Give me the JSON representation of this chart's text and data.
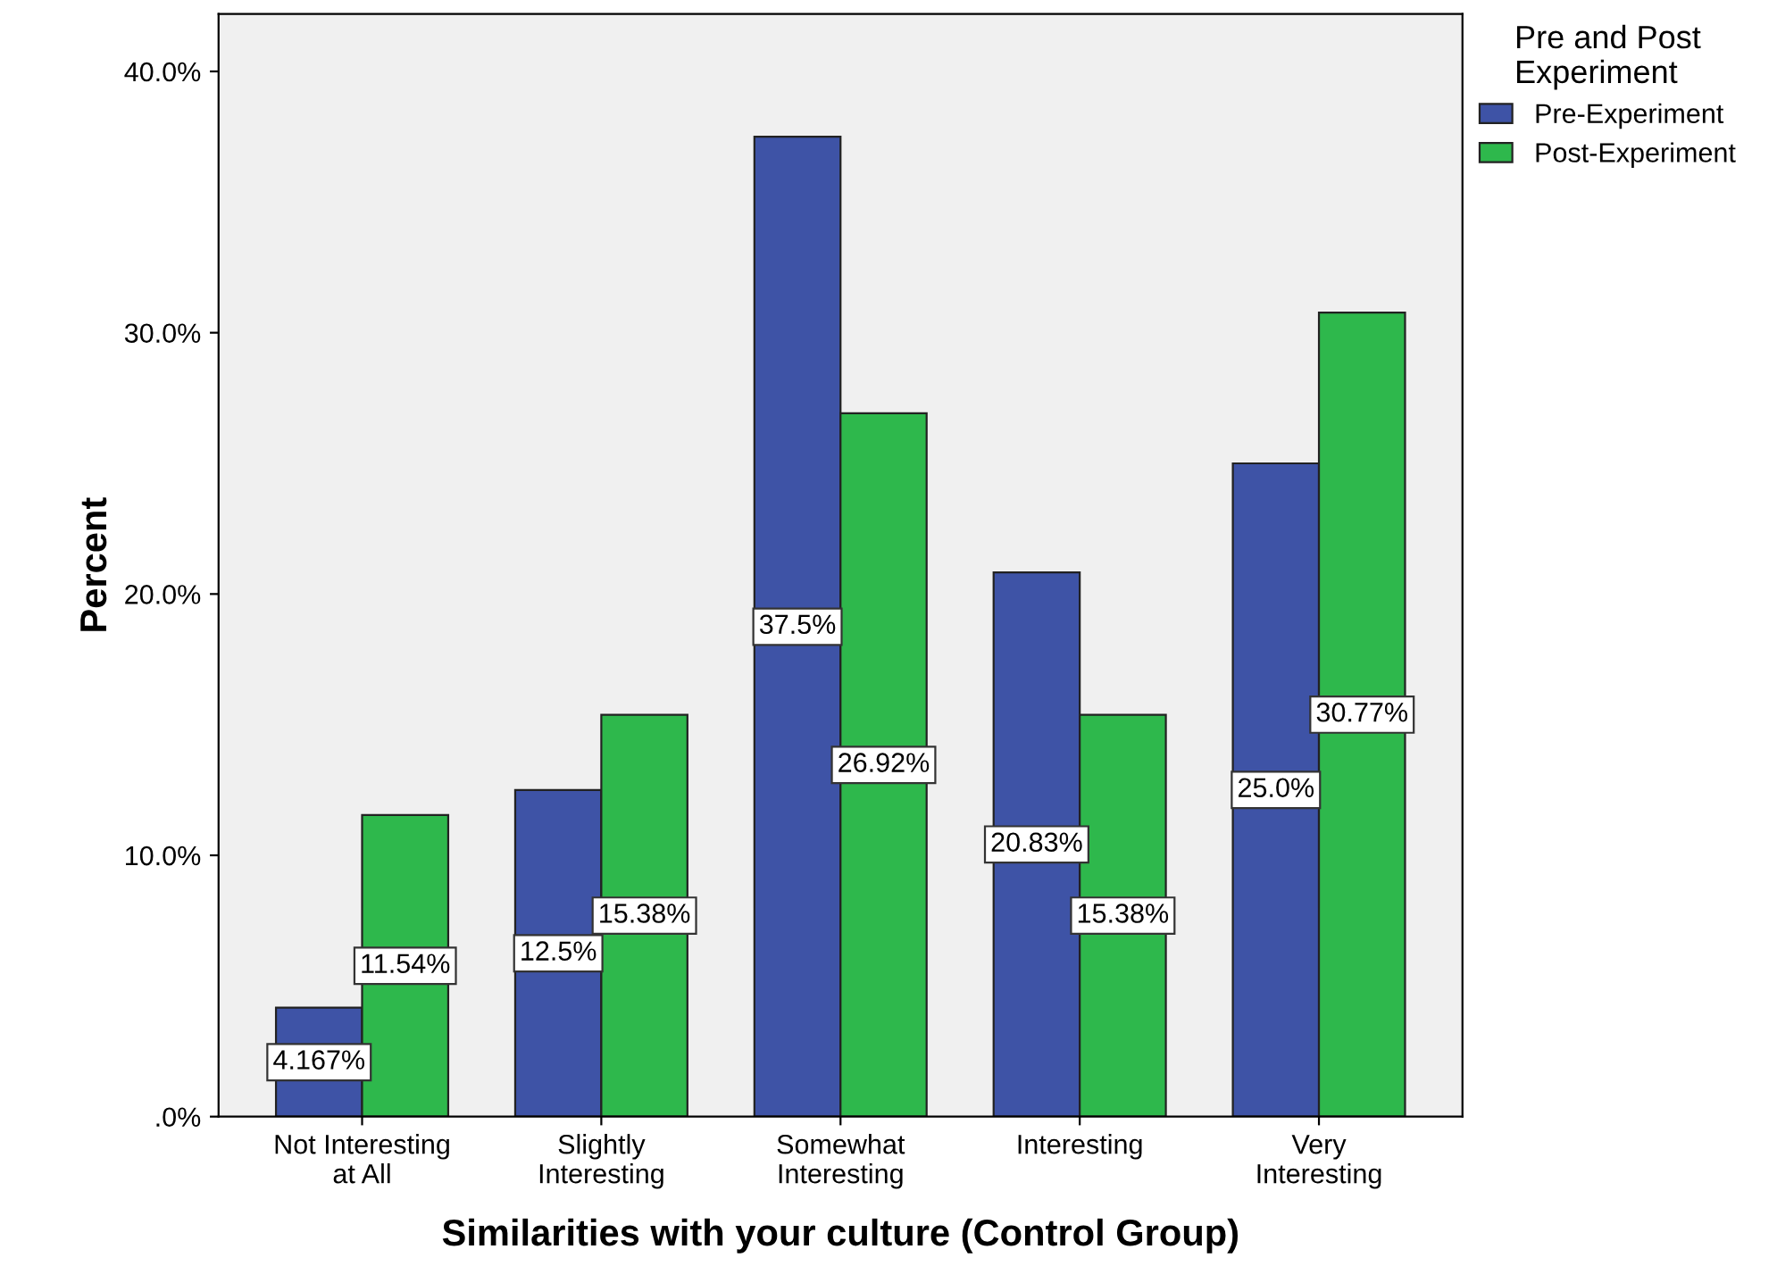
{
  "chart_data": {
    "type": "bar",
    "xlabel": "Similarities with your culture (Control Group)",
    "ylabel": "Percent",
    "legend_title": "Pre and Post\nExperiment",
    "categories": [
      "Not Interesting\nat All",
      "Slightly\nInteresting",
      "Somewhat\nInteresting",
      "Interesting",
      "Very\nInteresting"
    ],
    "series": [
      {
        "name": "Pre-Experiment",
        "color": "#3e53a6",
        "values": [
          4.167,
          12.5,
          37.5,
          20.83,
          25.0
        ],
        "value_labels": [
          "4.167%",
          "12.5%",
          "37.5%",
          "20.83%",
          "25.0%"
        ]
      },
      {
        "name": "Post-Experiment",
        "color": "#2eb84c",
        "values": [
          11.54,
          15.38,
          26.92,
          15.38,
          30.77
        ],
        "value_labels": [
          "11.54%",
          "15.38%",
          "26.92%",
          "15.38%",
          "30.77%"
        ]
      }
    ],
    "ylim": [
      0,
      42.2
    ],
    "yticks": [
      {
        "value": 0,
        "label": ".0%"
      },
      {
        "value": 10,
        "label": "10.0%"
      },
      {
        "value": 20,
        "label": "20.0%"
      },
      {
        "value": 30,
        "label": "30.0%"
      },
      {
        "value": 40,
        "label": "40.0%"
      }
    ],
    "grid": false,
    "legend": "top right"
  }
}
